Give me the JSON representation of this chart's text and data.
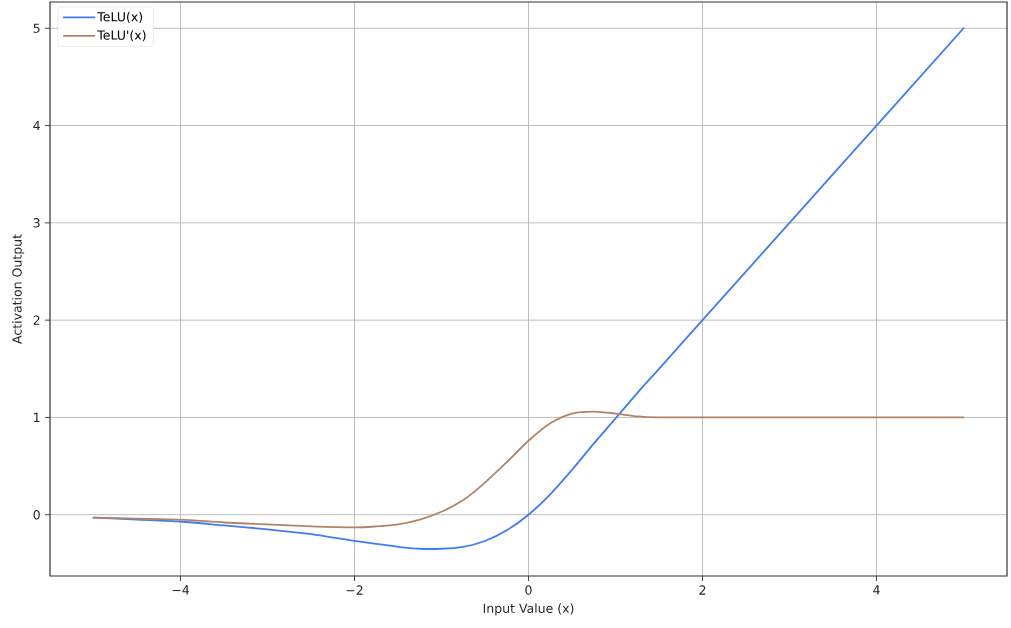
{
  "chart_data": {
    "type": "line",
    "xlabel": "Input Value (x)",
    "ylabel": "Activation Output",
    "x": [
      -5,
      -4.5,
      -4,
      -3.5,
      -3,
      -2.5,
      -2,
      -1.75,
      -1.5,
      -1.25,
      -1,
      -0.75,
      -0.5,
      -0.25,
      0,
      0.25,
      0.5,
      0.75,
      1,
      1.25,
      1.5,
      2,
      3,
      4,
      5
    ],
    "series": [
      {
        "name": "TeLU(x)",
        "color": "#3f7cf5",
        "values": [
          -0.03,
          -0.05,
          -0.07,
          -0.11,
          -0.15,
          -0.2,
          -0.27,
          -0.3,
          -0.33,
          -0.35,
          -0.35,
          -0.33,
          -0.27,
          -0.16,
          0,
          0.21,
          0.46,
          0.73,
          0.99,
          1.25,
          1.5,
          2,
          3,
          4,
          5
        ]
      },
      {
        "name": "TeLU'(x)",
        "color": "#b08566",
        "values": [
          -0.03,
          -0.04,
          -0.05,
          -0.08,
          -0.1,
          -0.12,
          -0.13,
          -0.12,
          -0.1,
          -0.05,
          0.03,
          0.15,
          0.33,
          0.54,
          0.76,
          0.94,
          1.04,
          1.06,
          1.04,
          1.01,
          1,
          1,
          1,
          1,
          1
        ]
      }
    ],
    "xlim": [
      -5.5,
      5.5
    ],
    "ylim": [
      -0.63,
      5.27
    ],
    "xticks": [
      {
        "value": -4,
        "label": "−4"
      },
      {
        "value": -2,
        "label": "−2"
      },
      0,
      2,
      4
    ],
    "yticks": [
      0,
      1,
      2,
      3,
      4,
      5
    ],
    "grid": true,
    "legend": "top left"
  }
}
